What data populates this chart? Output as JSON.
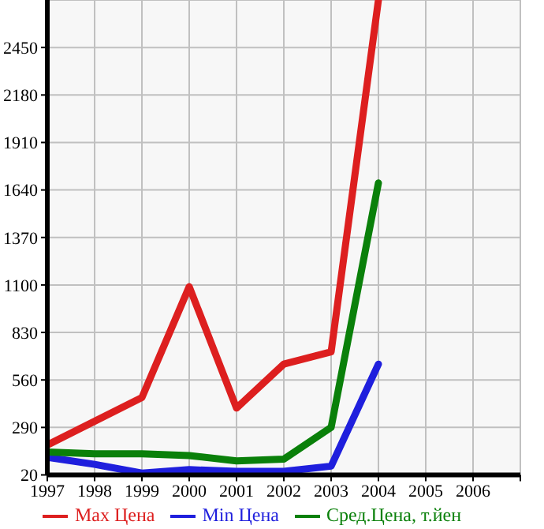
{
  "chart_data": {
    "type": "line",
    "x": [
      1997,
      1998,
      1999,
      2000,
      2001,
      2002,
      2003,
      2004
    ],
    "series": [
      {
        "name": "Max Цена",
        "color": "#dd1f1f",
        "x": [
          1997,
          1999,
          2000,
          2001,
          2002,
          2003,
          2004
        ],
        "values": [
          190,
          460,
          1090,
          400,
          650,
          720,
          2720
        ]
      },
      {
        "name": "Min Цена",
        "color": "#1f1fdd",
        "values": [
          120,
          80,
          30,
          50,
          40,
          40,
          70,
          650
        ]
      },
      {
        "name": "Сред.Цена, т.йен",
        "color": "#0a800a",
        "values": [
          150,
          140,
          140,
          130,
          100,
          110,
          290,
          1680
        ]
      }
    ],
    "xlim": [
      1997,
      2007
    ],
    "xticks": [
      1997,
      1998,
      1999,
      2000,
      2001,
      2002,
      2003,
      2004,
      2005,
      2006,
      {
        "value": 2007,
        "label": null
      }
    ],
    "ylim": [
      20,
      2720
    ],
    "yticks": [
      20,
      290,
      560,
      830,
      1100,
      1370,
      1640,
      1910,
      2180,
      2450
    ],
    "grid": true,
    "legend": "bottom",
    "marker": "none",
    "line_style": "solid"
  }
}
